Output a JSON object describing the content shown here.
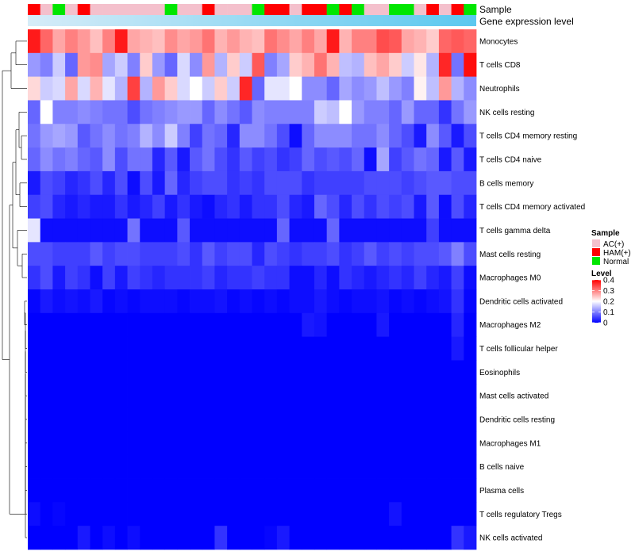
{
  "chart_data": {
    "type": "heatmap",
    "annotation_rows": [
      "Sample",
      "Gene expression level"
    ],
    "sample_legend": {
      "title": "Sample",
      "entries": [
        {
          "label": "AC(+)",
          "color": "#f4c0cc"
        },
        {
          "label": "HAM(+)",
          "color": "#ff0000"
        },
        {
          "label": "Normal",
          "color": "#00e600"
        }
      ]
    },
    "level_legend": {
      "title": "Level",
      "ticks": [
        "0.4",
        "0.3",
        "0.2",
        "0.1",
        "0"
      ],
      "range": [
        0,
        0.4
      ]
    },
    "colors": {
      "low": "#0000ff",
      "mid": "#ffffff",
      "high": "#ff0000",
      "bar_start": "#d6ecf8",
      "bar_end": "#5bc8ef"
    },
    "samples": [
      "H",
      "A",
      "N",
      "A",
      "H",
      "A",
      "A",
      "A",
      "A",
      "A",
      "A",
      "N",
      "A",
      "A",
      "H",
      "A",
      "A",
      "A",
      "N",
      "H",
      "H",
      "A",
      "H",
      "H",
      "N",
      "H",
      "N",
      "A",
      "A",
      "N",
      "N",
      "A",
      "H",
      "A",
      "H",
      "N"
    ],
    "rows": [
      {
        "name": "Monocytes",
        "values": [
          0.38,
          0.32,
          0.27,
          0.3,
          0.28,
          0.25,
          0.3,
          0.38,
          0.27,
          0.26,
          0.25,
          0.29,
          0.27,
          0.28,
          0.31,
          0.26,
          0.28,
          0.26,
          0.25,
          0.31,
          0.29,
          0.27,
          0.3,
          0.27,
          0.38,
          0.26,
          0.3,
          0.3,
          0.34,
          0.33,
          0.27,
          0.26,
          0.24,
          0.32,
          0.33,
          0.32
        ]
      },
      {
        "name": "T cells CD8",
        "values": [
          0.12,
          0.1,
          0.16,
          0.08,
          0.28,
          0.29,
          0.13,
          0.16,
          0.1,
          0.24,
          0.12,
          0.08,
          0.17,
          0.11,
          0.28,
          0.14,
          0.24,
          0.16,
          0.33,
          0.1,
          0.13,
          0.24,
          0.26,
          0.31,
          0.26,
          0.15,
          0.14,
          0.25,
          0.27,
          0.24,
          0.16,
          0.22,
          0.14,
          0.37,
          0.09,
          0.39
        ]
      },
      {
        "name": "Neutrophils",
        "values": [
          0.23,
          0.16,
          0.17,
          0.27,
          0.17,
          0.26,
          0.18,
          0.14,
          0.35,
          0.14,
          0.28,
          0.24,
          0.17,
          0.2,
          0.16,
          0.24,
          0.16,
          0.37,
          0.08,
          0.18,
          0.18,
          0.2,
          0.11,
          0.11,
          0.08,
          0.13,
          0.11,
          0.12,
          0.15,
          0.12,
          0.1,
          0.21,
          0.15,
          0.28,
          0.14,
          0.11
        ]
      },
      {
        "name": "NK cells resting",
        "values": [
          0.08,
          0.2,
          0.1,
          0.1,
          0.11,
          0.1,
          0.09,
          0.09,
          0.06,
          0.09,
          0.1,
          0.11,
          0.12,
          0.12,
          0.08,
          0.11,
          0.09,
          0.07,
          0.11,
          0.1,
          0.1,
          0.1,
          0.1,
          0.16,
          0.15,
          0.2,
          0.12,
          0.1,
          0.1,
          0.08,
          0.12,
          0.08,
          0.08,
          0.04,
          0.09,
          0.12
        ]
      },
      {
        "name": "T cells CD4 memory resting",
        "values": [
          0.09,
          0.12,
          0.13,
          0.12,
          0.07,
          0.09,
          0.11,
          0.09,
          0.1,
          0.14,
          0.11,
          0.16,
          0.1,
          0.05,
          0.09,
          0.08,
          0.03,
          0.11,
          0.11,
          0.09,
          0.06,
          0.01,
          0.08,
          0.11,
          0.11,
          0.11,
          0.09,
          0.09,
          0.11,
          0.08,
          0.06,
          0.02,
          0.11,
          0.07,
          0.02,
          0.06
        ]
      },
      {
        "name": "T cells CD4 naive",
        "values": [
          0.08,
          0.11,
          0.09,
          0.1,
          0.08,
          0.07,
          0.11,
          0.06,
          0.09,
          0.09,
          0.03,
          0.07,
          0.02,
          0.07,
          0.09,
          0.06,
          0.04,
          0.07,
          0.05,
          0.06,
          0.04,
          0.05,
          0.08,
          0.06,
          0.07,
          0.06,
          0.08,
          0.01,
          0.13,
          0.05,
          0.07,
          0.09,
          0.08,
          0.02,
          0.07,
          0.02
        ]
      },
      {
        "name": "B cells memory",
        "values": [
          0.02,
          0.06,
          0.05,
          0.03,
          0.04,
          0.06,
          0.03,
          0.06,
          0.01,
          0.06,
          0.02,
          0.08,
          0.03,
          0.05,
          0.06,
          0.06,
          0.04,
          0.05,
          0.04,
          0.06,
          0.06,
          0.06,
          0.04,
          0.05,
          0.05,
          0.05,
          0.05,
          0.06,
          0.06,
          0.06,
          0.05,
          0.06,
          0.07,
          0.07,
          0.06,
          0.06
        ]
      },
      {
        "name": "T cells CD4 memory activated",
        "values": [
          0.05,
          0.06,
          0.03,
          0.02,
          0.03,
          0.02,
          0.02,
          0.04,
          0.02,
          0.03,
          0.05,
          0.02,
          0.04,
          0.02,
          0.01,
          0.03,
          0.04,
          0.02,
          0.04,
          0.04,
          0.06,
          0.03,
          0.02,
          0.08,
          0.06,
          0.03,
          0.06,
          0.04,
          0.06,
          0.05,
          0.06,
          0.02,
          0.07,
          0.01,
          0.06,
          0.03
        ]
      },
      {
        "name": "T cells gamma delta",
        "values": [
          0.18,
          0.01,
          0.01,
          0.01,
          0.01,
          0.01,
          0.01,
          0.01,
          0.09,
          0.01,
          0.01,
          0.01,
          0.07,
          0.01,
          0.01,
          0.01,
          0.01,
          0.01,
          0.01,
          0.01,
          0.08,
          0.01,
          0.01,
          0.01,
          0.08,
          0.01,
          0.01,
          0.01,
          0.01,
          0.01,
          0.01,
          0.01,
          0.05,
          0.01,
          0.01,
          0.01
        ]
      },
      {
        "name": "Mast cells resting",
        "values": [
          0.06,
          0.06,
          0.05,
          0.05,
          0.05,
          0.07,
          0.05,
          0.06,
          0.06,
          0.05,
          0.05,
          0.05,
          0.06,
          0.04,
          0.07,
          0.05,
          0.06,
          0.06,
          0.03,
          0.06,
          0.05,
          0.04,
          0.05,
          0.05,
          0.06,
          0.04,
          0.05,
          0.07,
          0.05,
          0.06,
          0.05,
          0.06,
          0.06,
          0.07,
          0.1,
          0.06
        ]
      },
      {
        "name": "Macrophages M0",
        "values": [
          0.04,
          0.06,
          0.02,
          0.05,
          0.04,
          0.01,
          0.05,
          0.02,
          0.05,
          0.04,
          0.03,
          0.04,
          0.04,
          0.04,
          0.05,
          0.03,
          0.04,
          0.04,
          0.05,
          0.04,
          0.04,
          0.01,
          0.01,
          0.03,
          0.01,
          0.04,
          0.03,
          0.02,
          0.03,
          0.04,
          0.03,
          0.05,
          0.03,
          0.02,
          0.05,
          0.01
        ]
      },
      {
        "name": "Dendritic cells activated",
        "values": [
          0.005,
          0.02,
          0.01,
          0.015,
          0.01,
          0.02,
          0.005,
          0.01,
          0.005,
          0.01,
          0.01,
          0.01,
          0.005,
          0.01,
          0.01,
          0.015,
          0.005,
          0.01,
          0.005,
          0.01,
          0.005,
          0.01,
          0.01,
          0.02,
          0.01,
          0.005,
          0.01,
          0.01,
          0.015,
          0.005,
          0.01,
          0.005,
          0.01,
          0.015,
          0.04,
          0.005
        ]
      },
      {
        "name": "Macrophages M2",
        "values": [
          0,
          0,
          0,
          0,
          0,
          0,
          0,
          0,
          0,
          0,
          0,
          0,
          0,
          0,
          0,
          0,
          0,
          0,
          0,
          0,
          0,
          0,
          0.02,
          0.015,
          0,
          0,
          0,
          0,
          0.02,
          0,
          0,
          0,
          0,
          0,
          0.03,
          0
        ]
      },
      {
        "name": "T cells follicular helper",
        "values": [
          0,
          0,
          0,
          0,
          0,
          0,
          0,
          0,
          0,
          0,
          0,
          0,
          0,
          0,
          0,
          0,
          0,
          0,
          0,
          0,
          0,
          0,
          0,
          0,
          0,
          0,
          0,
          0,
          0,
          0,
          0,
          0,
          0,
          0,
          0.02,
          0
        ]
      },
      {
        "name": "Eosinophils",
        "values": [
          0,
          0,
          0,
          0,
          0,
          0,
          0,
          0,
          0,
          0,
          0,
          0,
          0,
          0,
          0,
          0,
          0,
          0,
          0,
          0,
          0,
          0,
          0,
          0,
          0,
          0,
          0,
          0,
          0,
          0,
          0,
          0,
          0,
          0,
          0,
          0
        ]
      },
      {
        "name": "Mast cells activated",
        "values": [
          0,
          0,
          0,
          0,
          0,
          0,
          0,
          0,
          0,
          0,
          0,
          0,
          0,
          0,
          0,
          0,
          0,
          0,
          0,
          0,
          0,
          0,
          0,
          0,
          0,
          0,
          0,
          0,
          0,
          0,
          0,
          0,
          0,
          0,
          0,
          0
        ]
      },
      {
        "name": "Dendritic cells resting",
        "values": [
          0,
          0,
          0,
          0,
          0,
          0,
          0,
          0,
          0,
          0,
          0,
          0,
          0,
          0,
          0,
          0,
          0,
          0,
          0,
          0,
          0,
          0,
          0,
          0,
          0,
          0,
          0,
          0,
          0,
          0,
          0,
          0,
          0,
          0,
          0,
          0
        ]
      },
      {
        "name": "Macrophages M1",
        "values": [
          0,
          0,
          0,
          0,
          0,
          0,
          0,
          0,
          0,
          0,
          0,
          0,
          0,
          0,
          0,
          0,
          0,
          0,
          0,
          0,
          0,
          0,
          0,
          0,
          0,
          0,
          0,
          0,
          0,
          0,
          0,
          0,
          0,
          0,
          0,
          0
        ]
      },
      {
        "name": "B cells naive",
        "values": [
          0,
          0,
          0,
          0,
          0,
          0,
          0,
          0,
          0,
          0,
          0,
          0,
          0,
          0,
          0,
          0,
          0,
          0,
          0,
          0,
          0,
          0,
          0,
          0,
          0,
          0,
          0,
          0,
          0,
          0,
          0,
          0,
          0,
          0,
          0,
          0
        ]
      },
      {
        "name": "Plasma cells",
        "values": [
          0,
          0,
          0,
          0,
          0,
          0,
          0,
          0,
          0,
          0,
          0,
          0,
          0,
          0,
          0,
          0,
          0,
          0,
          0,
          0,
          0,
          0,
          0,
          0,
          0,
          0,
          0,
          0,
          0,
          0,
          0,
          0,
          0,
          0,
          0,
          0
        ]
      },
      {
        "name": "T cells regulatory  Tregs",
        "values": [
          0.01,
          0,
          0.005,
          0,
          0,
          0,
          0,
          0,
          0,
          0,
          0,
          0,
          0,
          0,
          0,
          0,
          0,
          0,
          0,
          0,
          0,
          0,
          0,
          0,
          0,
          0,
          0,
          0,
          0,
          0.015,
          0,
          0,
          0,
          0,
          0,
          0
        ]
      },
      {
        "name": "NK cells activated",
        "values": [
          0,
          0,
          0,
          0,
          0.02,
          0,
          0.01,
          0,
          0.01,
          0,
          0,
          0,
          0,
          0,
          0,
          0.04,
          0,
          0,
          0,
          0.005,
          0.02,
          0,
          0,
          0,
          0,
          0,
          0,
          0,
          0,
          0,
          0,
          0,
          0,
          0,
          0.04,
          0.02
        ]
      }
    ]
  }
}
